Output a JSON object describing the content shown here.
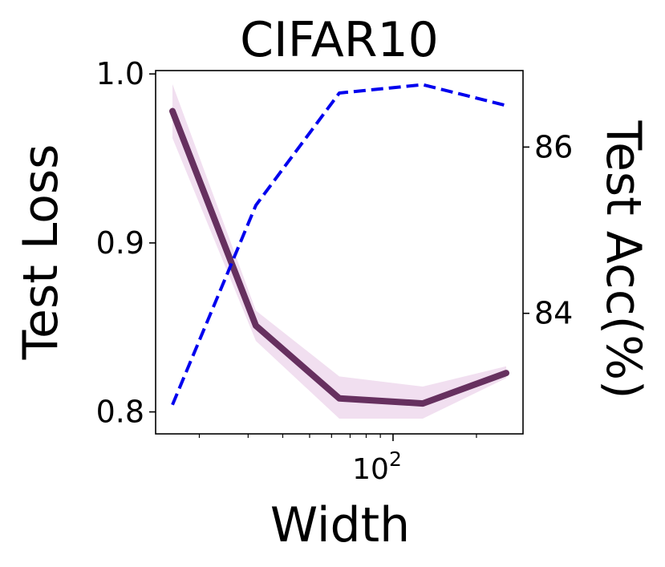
{
  "chart_data": {
    "type": "line",
    "title": "CIFAR10",
    "xlabel": "Width",
    "ylabel_left": "Test Loss",
    "ylabel_right": "Test Acc(%)",
    "x_scale": "log",
    "x_tick_base": "10",
    "x_tick_exp": "2",
    "x": [
      16,
      32,
      64,
      128,
      256
    ],
    "series": [
      {
        "axis": "left",
        "style": "solid",
        "color": "#66305f",
        "band_color": "#f1dff0",
        "values": [
          0.978,
          0.851,
          0.808,
          0.805,
          0.823
        ],
        "lower": [
          0.962,
          0.842,
          0.796,
          0.796,
          0.82
        ],
        "upper": [
          0.994,
          0.86,
          0.821,
          0.815,
          0.827
        ]
      },
      {
        "axis": "right",
        "style": "dashed",
        "color": "#0000ee",
        "values": [
          82.9,
          85.3,
          86.65,
          86.75,
          86.5
        ]
      }
    ],
    "ylim_left": [
      0.787,
      1.002
    ],
    "ylim_right": [
      82.55,
      86.92
    ],
    "yticks_left": [
      0.8,
      0.9,
      1.0
    ],
    "yticks_left_labels": [
      "0.8",
      "0.9",
      "1.0"
    ],
    "yticks_right": [
      84,
      86
    ],
    "yticks_right_labels": [
      "84",
      "86"
    ],
    "grid": false,
    "legend": "none"
  }
}
